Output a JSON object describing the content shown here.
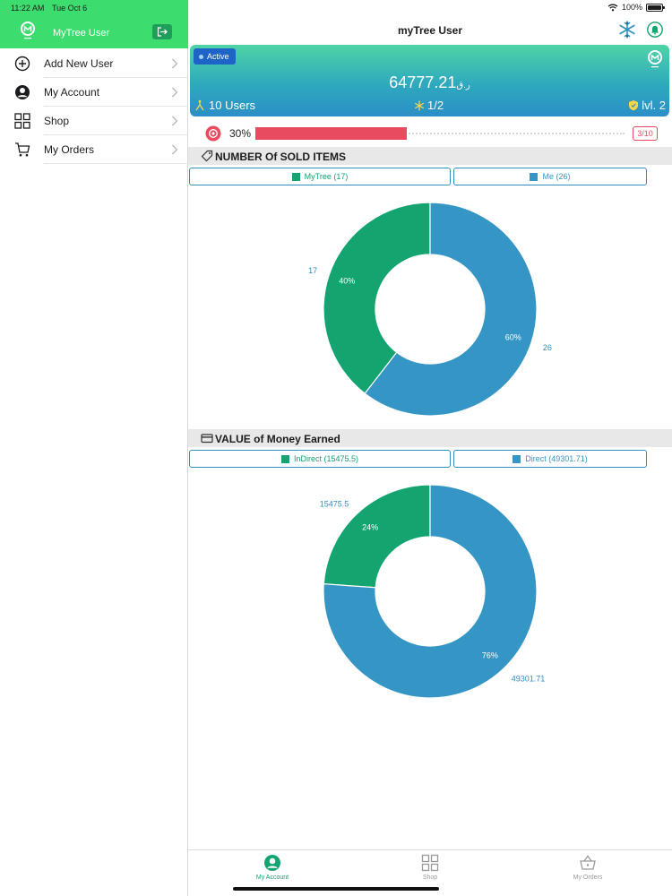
{
  "status_bar": {
    "time": "11:22 AM",
    "date": "Tue Oct 6",
    "battery": "100%"
  },
  "sidebar": {
    "user_name": "MyTree User",
    "items": [
      {
        "label": "Add New User",
        "icon": "plus-circle-icon"
      },
      {
        "label": "My Account",
        "icon": "account-icon"
      },
      {
        "label": "Shop",
        "icon": "grid-icon"
      },
      {
        "label": "My Orders",
        "icon": "cart-icon"
      }
    ]
  },
  "nav": {
    "title": "myTree User"
  },
  "card": {
    "status": "Active",
    "amount": "64777.21",
    "currency": "ر.ق",
    "users": "10 Users",
    "ratio": "1/2",
    "level": "lvl. 2"
  },
  "progress": {
    "percent_label": "30%",
    "fraction": 0.3,
    "count": "3/10",
    "color": "#e84a5f"
  },
  "sold_items": {
    "title": "NUMBER Of SOLD ITEMS",
    "legend": [
      {
        "label": "MyTree (17)",
        "color": "#13a46f"
      },
      {
        "label": "Me (26)",
        "color": "#3596c6"
      }
    ]
  },
  "money_earned": {
    "title": "VALUE of Money Earned",
    "legend": [
      {
        "label": "InDirect (15475.5)",
        "color": "#13a46f"
      },
      {
        "label": "Direct (49301.71)",
        "color": "#3596c6"
      }
    ]
  },
  "chart_data": [
    {
      "type": "pie",
      "title": "NUMBER Of SOLD ITEMS",
      "categories": [
        "MyTree",
        "Me"
      ],
      "values": [
        17,
        26
      ],
      "value_labels": [
        "17",
        "26"
      ],
      "percent_labels": [
        "40%",
        "60%"
      ],
      "colors": [
        "#13a46f",
        "#3596c6"
      ],
      "donut": true
    },
    {
      "type": "pie",
      "title": "VALUE of Money Earned",
      "categories": [
        "InDirect",
        "Direct"
      ],
      "values": [
        15475.5,
        49301.71
      ],
      "value_labels": [
        "15475.5",
        "49301.71"
      ],
      "percent_labels": [
        "24%",
        "76%"
      ],
      "colors": [
        "#13a46f",
        "#3596c6"
      ],
      "donut": true
    }
  ],
  "tabs": [
    {
      "label": "My Account",
      "active": true
    },
    {
      "label": "Shop",
      "active": false
    },
    {
      "label": "My Orders",
      "active": false
    }
  ],
  "colors": {
    "brand_green": "#3ddc6f",
    "tab_active": "#13a46f",
    "tab_inactive": "#9a9a9a"
  }
}
